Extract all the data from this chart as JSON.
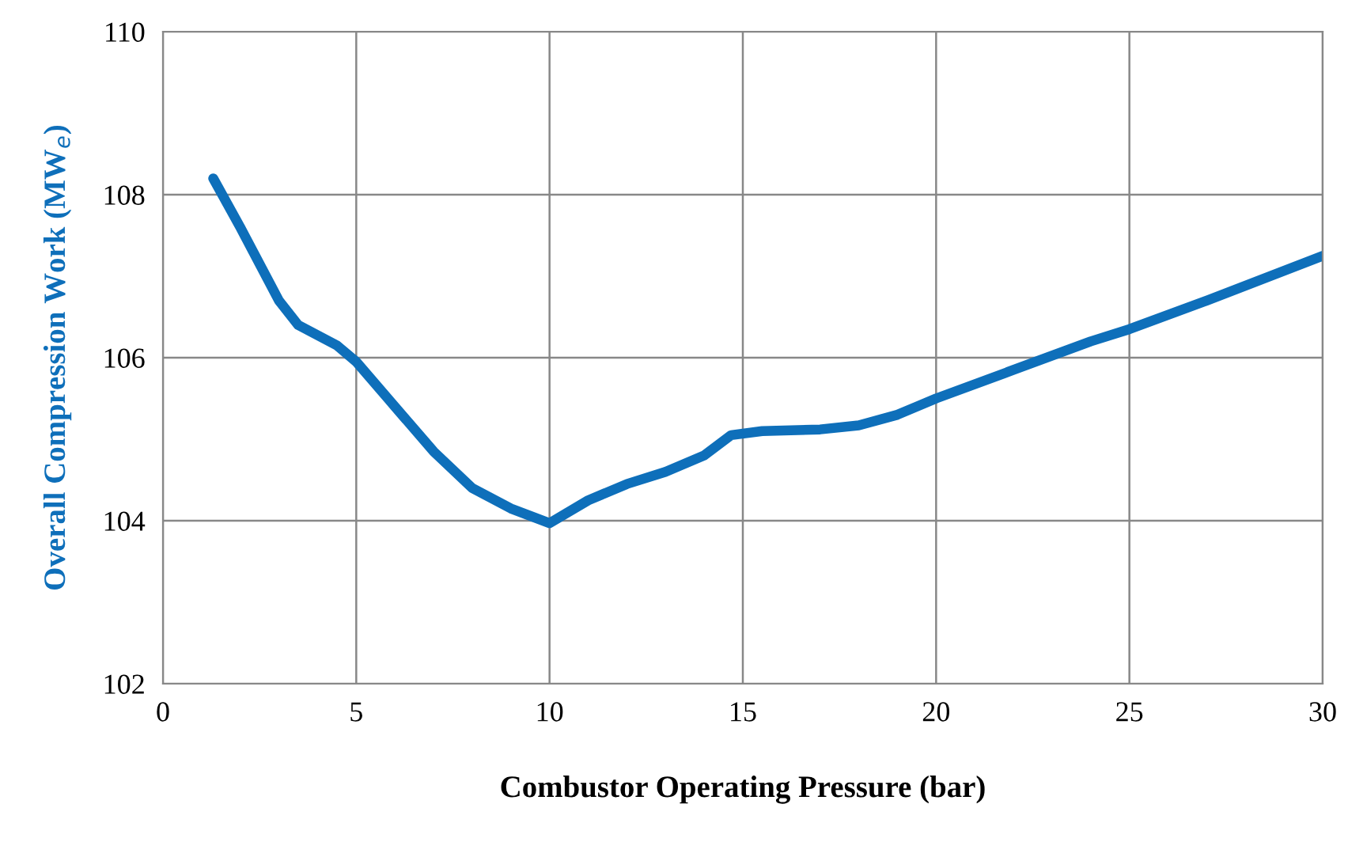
{
  "chart_data": {
    "type": "line",
    "xlabel": "Combustor Operating Pressure (bar)",
    "ylabel": "Overall Compression Work (MW$_{e}$)",
    "xlim": [
      0,
      30
    ],
    "xticks": [
      0,
      5,
      10,
      15,
      20,
      25,
      30
    ],
    "ylim": [
      102,
      110
    ],
    "yticks": [
      102,
      104,
      106,
      108,
      110
    ],
    "grid": true,
    "marker": "none",
    "line_style": "solid",
    "series": [
      {
        "color": "#0e6fba",
        "x": [
          1.3,
          2,
          3,
          3.5,
          4.5,
          5,
          6,
          7,
          8,
          9,
          10,
          11,
          12,
          13,
          14,
          14.7,
          15.5,
          17,
          18,
          19,
          20,
          22,
          24,
          25,
          27,
          30
        ],
        "values": [
          108.2,
          107.6,
          106.7,
          106.4,
          106.15,
          105.95,
          105.4,
          104.85,
          104.4,
          104.15,
          103.97,
          104.25,
          104.45,
          104.6,
          104.8,
          105.05,
          105.1,
          105.12,
          105.17,
          105.3,
          105.5,
          105.85,
          106.2,
          106.35,
          106.7,
          107.25
        ]
      }
    ]
  }
}
